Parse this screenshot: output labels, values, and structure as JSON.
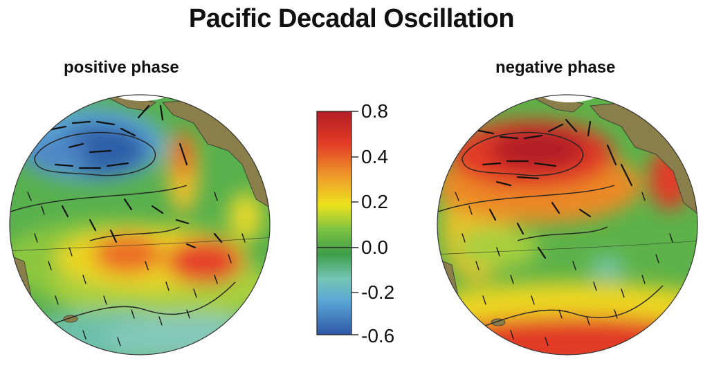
{
  "title": "Pacific Decadal Oscillation",
  "panels": [
    {
      "label": "positive phase"
    },
    {
      "label": "negative phase"
    }
  ],
  "colorbar": {
    "tick_labels": [
      "0.8",
      "0.4",
      "0.2",
      "0.0",
      "-0.2",
      "-0.6"
    ],
    "colors": [
      "#b21e26",
      "#e23a26",
      "#f0a02a",
      "#ece21c",
      "#7cc244",
      "#3e9e48",
      "#74c6b6",
      "#5aa6d6",
      "#2e56a6"
    ]
  },
  "colors": {
    "land": "#8a7e4a",
    "ice": "#ffffff",
    "arrows": "#111111"
  }
}
